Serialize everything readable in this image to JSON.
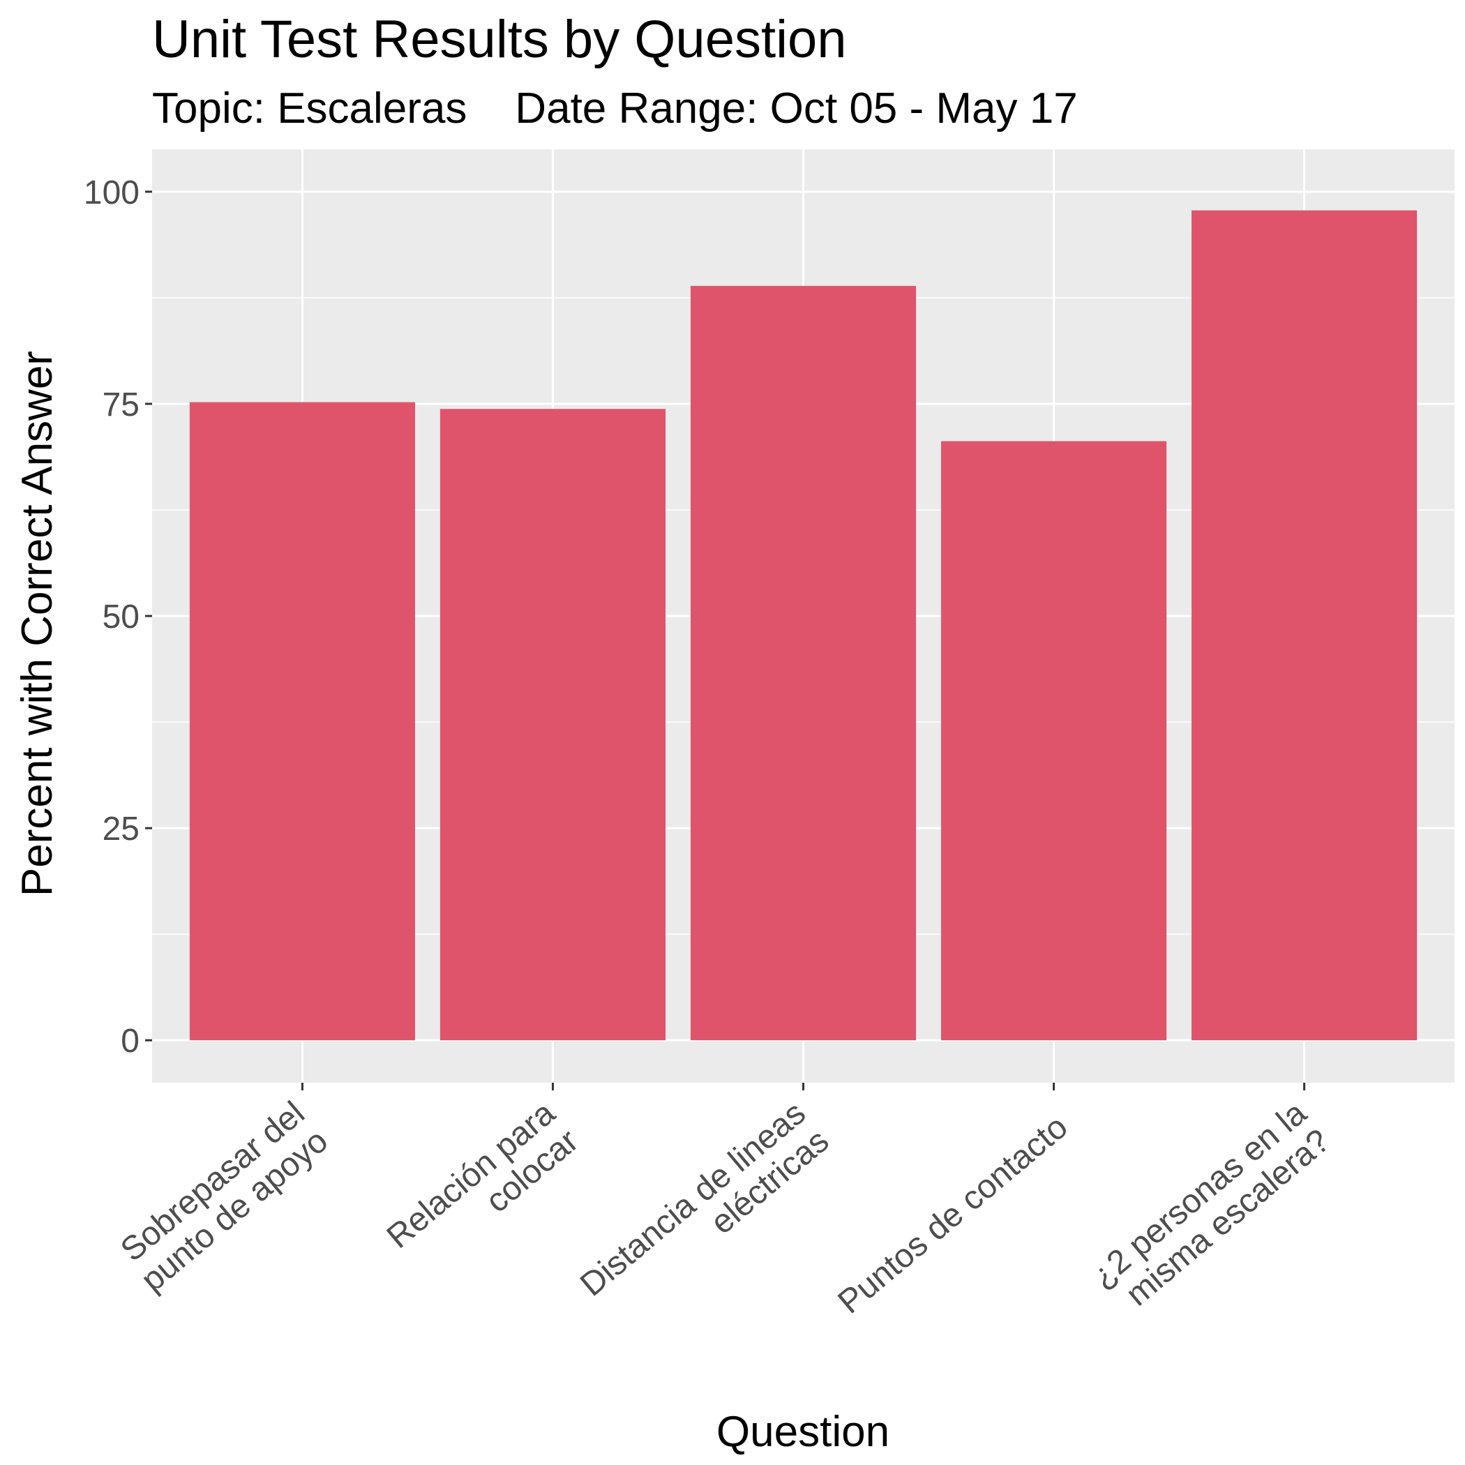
{
  "chart_data": {
    "type": "bar",
    "title": "Unit Test Results by Question",
    "subtitle": "Topic: Escaleras    Date Range: Oct 05 - May 17",
    "xlabel": "Question",
    "ylabel": "Percent with Correct Answer",
    "categories": [
      [
        "Sobrepasar del",
        "punto de apoyo"
      ],
      [
        "Relación para",
        "colocar"
      ],
      [
        "Distancia de lineas",
        "eléctricas"
      ],
      [
        "Puntos de contacto"
      ],
      [
        "¿2 personas en la",
        "misma escalera?"
      ]
    ],
    "values": [
      75.2,
      74.4,
      88.9,
      70.6,
      97.8
    ],
    "ylim": [
      -5,
      105
    ],
    "yticks": [
      0,
      25,
      50,
      75,
      100
    ],
    "ytick_labels": [
      "0",
      "25",
      "50",
      "75",
      "100"
    ],
    "grid": true,
    "bar_color": "#E0546B",
    "panel_color": "#EBEBEB",
    "grid_color": "#FFFFFF"
  }
}
